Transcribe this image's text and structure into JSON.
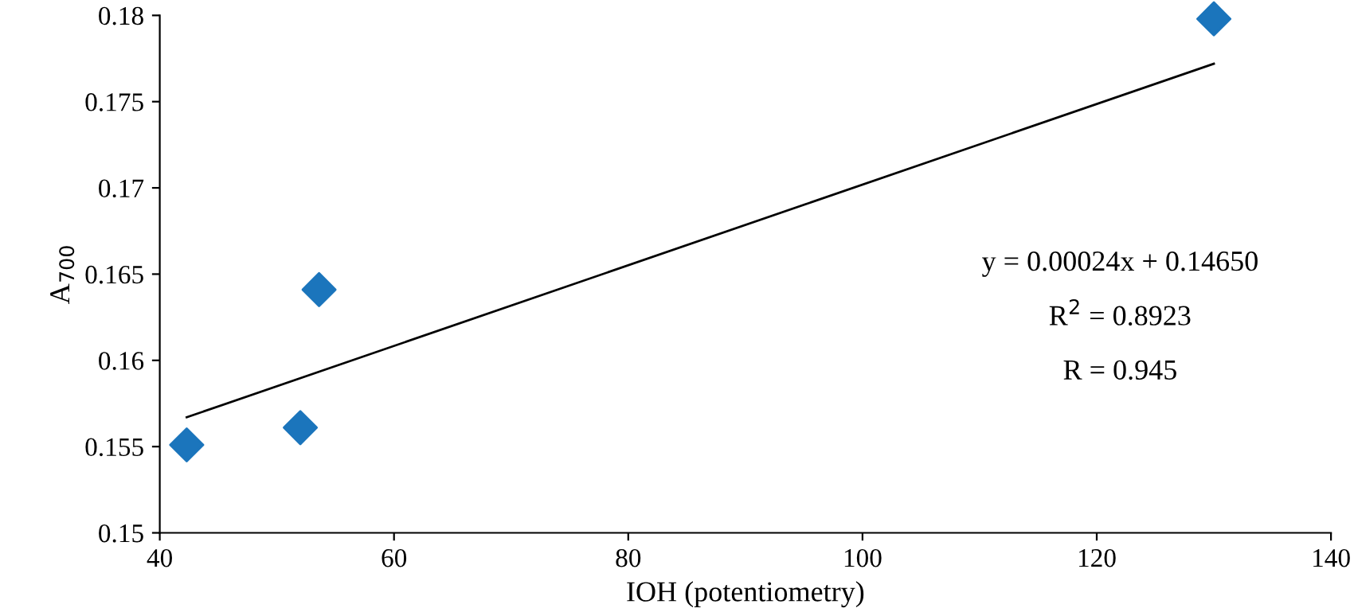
{
  "chart_data": {
    "type": "scatter",
    "xlabel": "IOH (potentiometry)",
    "ylabel": "A$_{700}$",
    "xlim": [
      40,
      140
    ],
    "xticks": [
      40,
      60,
      80,
      100,
      120,
      140
    ],
    "ylim": [
      0.15,
      0.18
    ],
    "yticks": [
      0.15,
      0.155,
      0.16,
      0.165,
      0.17,
      0.175,
      0.18
    ],
    "grid": false,
    "legend": false,
    "series": [
      {
        "marker": "diamond",
        "color": "#1b75bc",
        "x": [
          42.3,
          52.0,
          53.6,
          130.0
        ],
        "values": [
          0.1551,
          0.1561,
          0.1641,
          0.1798
        ]
      },
      {
        "type": "line",
        "marker": "none",
        "color": "#000000",
        "x": [
          42.3,
          130.0
        ],
        "values": [
          0.1567,
          0.1772
        ]
      }
    ],
    "annotations": [
      "y = 0.00024x + 0.14650",
      "R$^{2}$ = 0.8923",
      "R = 0.945"
    ]
  }
}
